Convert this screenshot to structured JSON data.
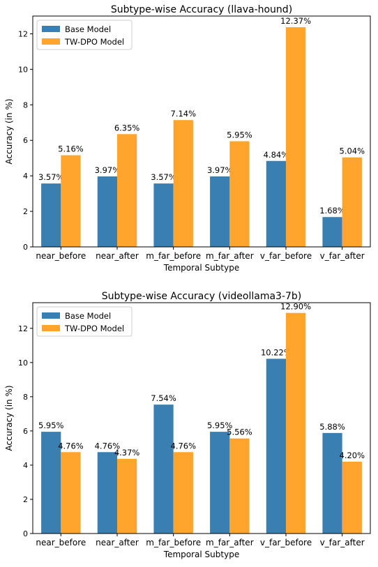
{
  "colors": {
    "base": "#3a7fb1",
    "dpo": "#ffa42d",
    "axis": "#000000"
  },
  "chart_data": [
    {
      "type": "bar",
      "title": "Subtype-wise Accuracy (llava-hound)",
      "xlabel": "Temporal Subtype",
      "ylabel": "Accuracy (in %)",
      "ylim": [
        0,
        13
      ],
      "yticks": [
        0,
        2,
        4,
        6,
        8,
        10,
        12
      ],
      "ytick_labels": [
        "0",
        "2",
        "4",
        "6",
        "8",
        "10",
        "12"
      ],
      "legend": "top-left",
      "grid": false,
      "categories": [
        "near_before",
        "near_after",
        "m_far_before",
        "m_far_after",
        "v_far_before",
        "v_far_after"
      ],
      "series": [
        {
          "name": "Base Model",
          "values": [
            3.57,
            3.97,
            3.57,
            3.97,
            4.84,
            1.68
          ],
          "labels": [
            "3.57%",
            "3.97%",
            "3.57%",
            "3.97%",
            "4.84%",
            "1.68%"
          ]
        },
        {
          "name": "TW-DPO Model",
          "values": [
            5.16,
            6.35,
            7.14,
            5.95,
            12.37,
            5.04
          ],
          "labels": [
            "5.16%",
            "6.35%",
            "7.14%",
            "5.95%",
            "12.37%",
            "5.04%"
          ]
        }
      ]
    },
    {
      "type": "bar",
      "title": "Subtype-wise Accuracy (videollama3-7b)",
      "xlabel": "Temporal Subtype",
      "ylabel": "Accuracy (in %)",
      "ylim": [
        0,
        13.5
      ],
      "yticks": [
        0,
        2,
        4,
        6,
        8,
        10,
        12
      ],
      "ytick_labels": [
        "0",
        "2",
        "4",
        "6",
        "8",
        "10",
        "12"
      ],
      "legend": "top-left",
      "grid": false,
      "categories": [
        "near_before",
        "near_after",
        "m_far_before",
        "m_far_after",
        "v_far_before",
        "v_far_after"
      ],
      "series": [
        {
          "name": "Base Model",
          "values": [
            5.95,
            4.76,
            7.54,
            5.95,
            10.22,
            5.88
          ],
          "labels": [
            "5.95%",
            "4.76%",
            "7.54%",
            "5.95%",
            "10.22%",
            "5.88%"
          ]
        },
        {
          "name": "TW-DPO Model",
          "values": [
            4.76,
            4.37,
            4.76,
            5.56,
            12.9,
            4.2
          ],
          "labels": [
            "4.76%",
            "4.37%",
            "4.76%",
            "5.56%",
            "12.90%",
            "4.20%"
          ]
        }
      ]
    }
  ]
}
